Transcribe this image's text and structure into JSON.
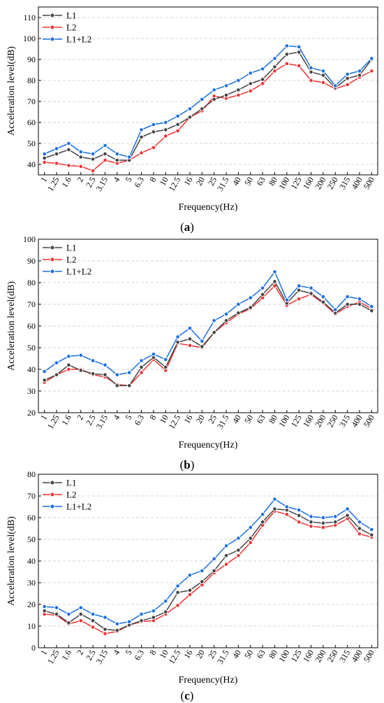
{
  "colors": {
    "L1": "#444444",
    "L2": "#ee3333",
    "L1+L2": "#1a6fe0"
  },
  "chart_data": [
    {
      "type": "line",
      "panel_label": "(a)",
      "xlabel": "Frequency(Hz)",
      "ylabel": "Acceleration level(dB)",
      "ylim": [
        35,
        115
      ],
      "yticks": [
        40,
        50,
        60,
        70,
        80,
        90,
        100,
        110
      ],
      "grid": true,
      "legend_position": "top-left",
      "categories": [
        "1",
        "1.25",
        "1.6",
        "2",
        "2.5",
        "3.15",
        "4",
        "5",
        "6.3",
        "8",
        "10",
        "12.5",
        "16",
        "20",
        "25",
        "31.5",
        "40",
        "50",
        "63",
        "80",
        "100",
        "125",
        "160",
        "200",
        "250",
        "315",
        "400",
        "500"
      ],
      "series": [
        {
          "name": "L1",
          "values": [
            43,
            45,
            47,
            43.5,
            42.5,
            45,
            42,
            42,
            53,
            55.5,
            56.5,
            59,
            62.5,
            66.5,
            71,
            73,
            75.5,
            78.5,
            80.5,
            86.5,
            92.5,
            93.5,
            84,
            82.5,
            76.5,
            81,
            82.5,
            90
          ]
        },
        {
          "name": "L2",
          "values": [
            41,
            40.5,
            39.5,
            39,
            37,
            42,
            40.5,
            42,
            45.5,
            48,
            53.5,
            56,
            62.5,
            65.5,
            72.5,
            71.5,
            73,
            75,
            78.5,
            84.5,
            88,
            87,
            80,
            79,
            76,
            78,
            81.5,
            84.5
          ]
        },
        {
          "name": "L1+L2",
          "values": [
            45,
            47.5,
            50,
            46,
            45,
            49,
            45,
            43.5,
            56.5,
            59,
            60,
            63,
            66.5,
            71,
            75.5,
            77.5,
            80,
            83.5,
            85.5,
            90.5,
            96.5,
            96,
            86,
            84.5,
            77.5,
            83,
            84.5,
            90.5
          ]
        }
      ]
    },
    {
      "type": "line",
      "panel_label": "(b)",
      "xlabel": "Frequency(Hz)",
      "ylabel": "Acceleration level(dB)",
      "ylim": [
        20,
        100
      ],
      "yticks": [
        20,
        30,
        40,
        50,
        60,
        70,
        80,
        90,
        100
      ],
      "grid": true,
      "legend_position": "top-left",
      "categories": [
        "1",
        "1.25",
        "1.6",
        "2",
        "2.5",
        "3.15",
        "4",
        "5",
        "6.3",
        "8",
        "10",
        "12.5",
        "16",
        "20",
        "25",
        "31.5",
        "40",
        "50",
        "63",
        "80",
        "100",
        "125",
        "160",
        "200",
        "250",
        "315",
        "400",
        "500"
      ],
      "series": [
        {
          "name": "L1",
          "values": [
            35,
            37.5,
            42,
            39.5,
            38,
            37.5,
            32.5,
            32.5,
            41,
            45.5,
            41,
            52.5,
            54,
            50.5,
            57,
            62.5,
            66,
            68.5,
            74.5,
            80.5,
            70.5,
            76.5,
            75,
            71,
            66,
            70,
            70,
            67
          ]
        },
        {
          "name": "L2",
          "values": [
            34,
            37.5,
            40,
            40,
            37.5,
            36.5,
            33,
            32.5,
            38.5,
            44.5,
            39.5,
            52,
            51,
            50,
            57,
            61.5,
            65.5,
            68,
            73,
            78.5,
            69.5,
            72.5,
            74.5,
            70.5,
            65.5,
            69,
            71,
            68
          ]
        },
        {
          "name": "L1+L2",
          "values": [
            39,
            43,
            46,
            46.5,
            44,
            42,
            37.5,
            38.5,
            44,
            47,
            44.5,
            55,
            59,
            53,
            62.5,
            65.5,
            70,
            73,
            77.5,
            85,
            72,
            78.5,
            77.5,
            73.5,
            67.5,
            73.5,
            72.5,
            69
          ]
        }
      ]
    },
    {
      "type": "line",
      "panel_label": "(c)",
      "xlabel": "Frequency(Hz)",
      "ylabel": "Acceleration level(dB)",
      "ylim": [
        0,
        80
      ],
      "yticks": [
        0,
        10,
        20,
        30,
        40,
        50,
        60,
        70,
        80
      ],
      "grid": true,
      "legend_position": "top-left",
      "categories": [
        "1",
        "1.25",
        "1.6",
        "2",
        "2.5",
        "3.15",
        "4",
        "5",
        "6.3",
        "8",
        "10",
        "12.5",
        "16",
        "20",
        "25",
        "31.5",
        "40",
        "50",
        "63",
        "80",
        "100",
        "125",
        "160",
        "200",
        "250",
        "315",
        "400",
        "500"
      ],
      "series": [
        {
          "name": "L1",
          "values": [
            17,
            15.5,
            11.5,
            15.5,
            12.5,
            8.5,
            8,
            10.5,
            12.5,
            14,
            16.5,
            25.5,
            26.5,
            30.5,
            35.5,
            42.5,
            45,
            50.5,
            58,
            64,
            63.5,
            61,
            58,
            57.5,
            58,
            61,
            55,
            52
          ]
        },
        {
          "name": "L2",
          "values": [
            15.5,
            15,
            11,
            12.5,
            9.5,
            6.5,
            7.5,
            10.5,
            12,
            12.5,
            15.5,
            19.5,
            24.5,
            29,
            34.5,
            38.5,
            42.5,
            48.5,
            56.5,
            63,
            61.5,
            58,
            56,
            55.5,
            56.5,
            59.5,
            52.5,
            51
          ]
        },
        {
          "name": "L1+L2",
          "values": [
            19,
            18.5,
            15.5,
            18.5,
            15.5,
            14,
            11,
            12,
            15.5,
            17,
            21.5,
            28.5,
            33.5,
            35.5,
            41,
            47,
            50.5,
            55.5,
            61.5,
            68.5,
            65,
            63.5,
            60.5,
            60,
            60.5,
            64,
            58,
            54.5
          ]
        }
      ]
    }
  ]
}
